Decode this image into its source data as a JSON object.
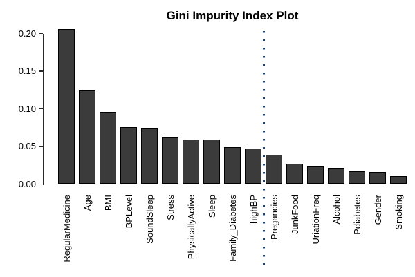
{
  "chart_data": {
    "type": "bar",
    "title": "Gini Impurity Index Plot",
    "xlabel": "",
    "ylabel": "",
    "categories": [
      "RegularMedicine",
      "Age",
      "BMI",
      "BPLevel",
      "SoundSleep",
      "Stress",
      "PhysicallyActive",
      "Sleep",
      "Family_Diabetes",
      "highBP",
      "Pregancies",
      "JunkFood",
      "UriationFreq",
      "Alcohol",
      "Pdiabetes",
      "Gender",
      "Smoking"
    ],
    "values": [
      0.206,
      0.124,
      0.096,
      0.076,
      0.074,
      0.062,
      0.059,
      0.059,
      0.049,
      0.047,
      0.039,
      0.027,
      0.023,
      0.022,
      0.017,
      0.016,
      0.011
    ],
    "ylim": [
      0,
      0.2
    ],
    "ytick_values": [
      0,
      0.05,
      0.1,
      0.15,
      0.2
    ],
    "ytick_labels": [
      "0.00",
      "0.05",
      "0.10",
      "0.15",
      "0.20"
    ],
    "grid": false,
    "legend_position": "none",
    "bar_fill_color": "#3b3b3b",
    "bar_border_color": "#000000",
    "axis_color": "#2a2a2a",
    "title_color": "#000000",
    "annotation_vline": {
      "style": "dotted",
      "color": "#1a4680",
      "between_categories": [
        "highBP",
        "Pregancies"
      ]
    }
  }
}
